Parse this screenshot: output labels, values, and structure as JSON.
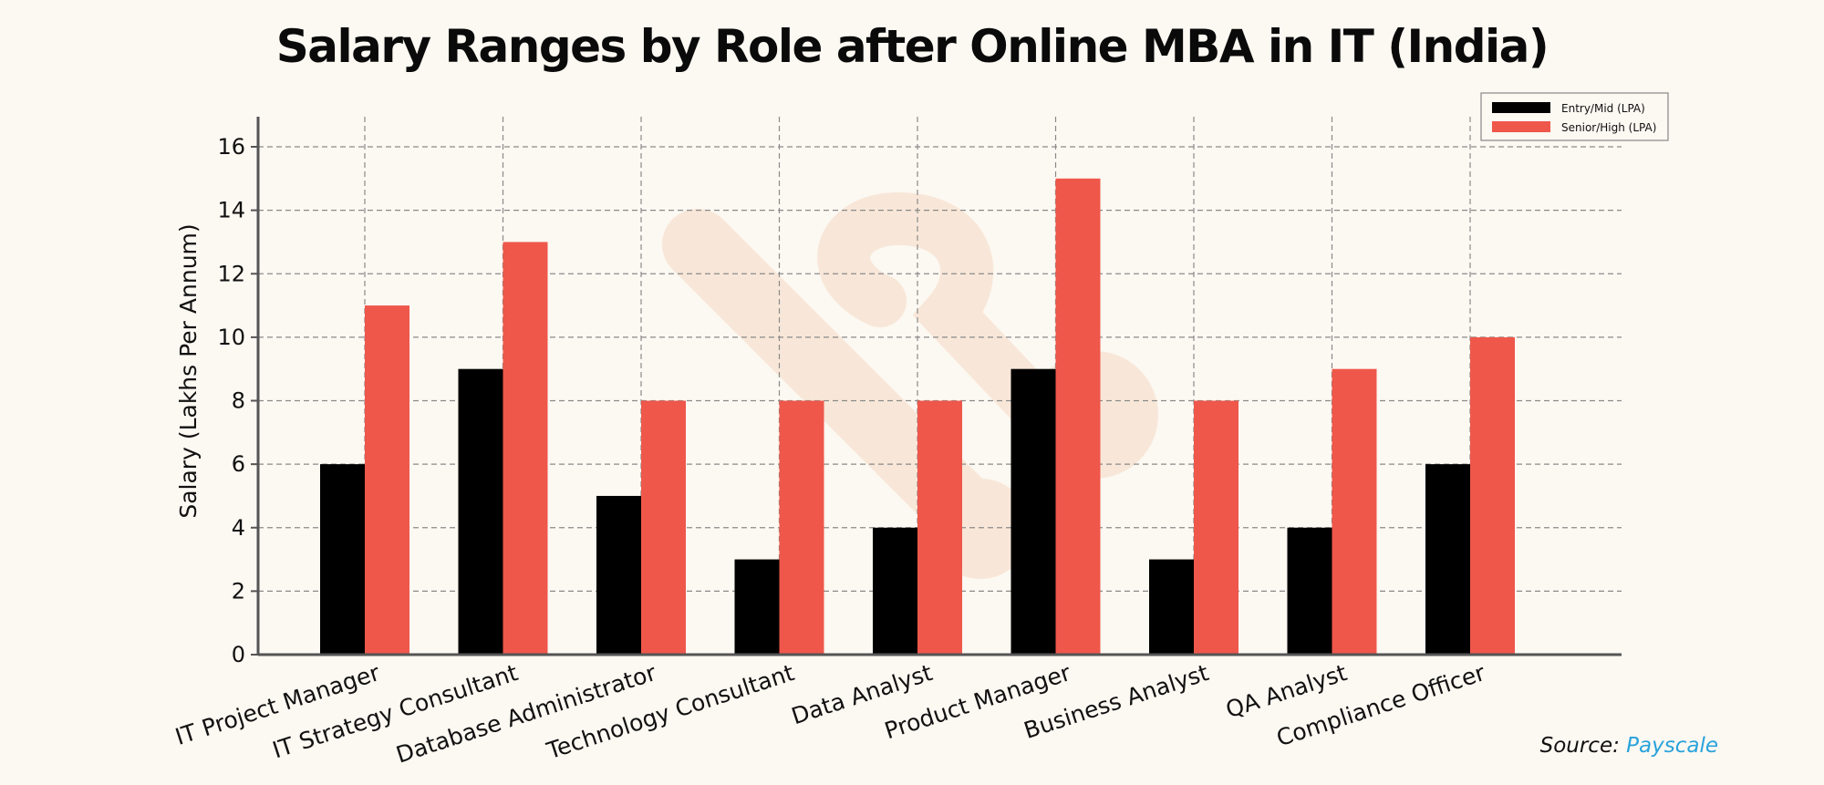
{
  "chart_data": {
    "type": "bar",
    "title": "Salary Ranges by Role after Online MBA in IT (India)",
    "xlabel": "",
    "ylabel": "Salary (Lakhs Per Annum)",
    "ylim": [
      0,
      17
    ],
    "yticks": [
      0,
      2,
      4,
      6,
      8,
      10,
      12,
      14,
      16
    ],
    "grid": true,
    "legend_position": "top-right",
    "categories": [
      "IT Project Manager",
      "IT Strategy Consultant",
      "Database Administrator",
      "Technology Consultant",
      "Data Analyst",
      "Product Manager",
      "Business Analyst",
      "QA Analyst",
      "Compliance Officer"
    ],
    "series": [
      {
        "name": "Entry/Mid (LPA)",
        "color": "#000000",
        "values": [
          6,
          9,
          5,
          3,
          4,
          9,
          3,
          4,
          6
        ]
      },
      {
        "name": "Senior/High (LPA)",
        "color": "#ef574b",
        "values": [
          11,
          13,
          8,
          8,
          8,
          15,
          8,
          9,
          10
        ]
      }
    ]
  },
  "source": {
    "label": "Source:",
    "name": "Payscale"
  },
  "colors": {
    "background": "#fcf8f2",
    "watermark": "#f8e6d6",
    "link": "#29a3dc"
  }
}
